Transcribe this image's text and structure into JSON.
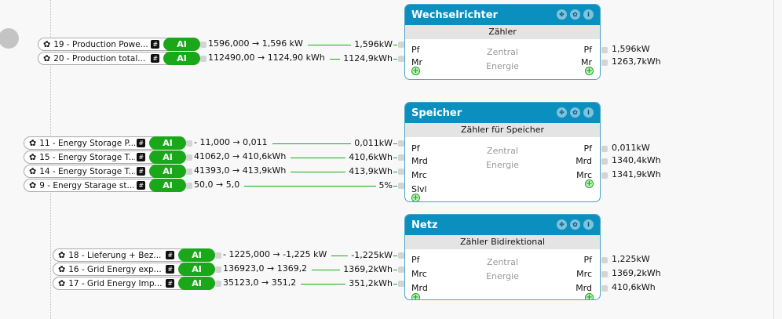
{
  "inputs": [
    {
      "id": "19",
      "label": "19 - Production Powe...",
      "raw": "1596,000 → 1,596  kW",
      "value": "1,596kW"
    },
    {
      "id": "20",
      "label": "20 - Production total...",
      "raw": "112490,00 → 1124,90  kWh",
      "value": "1124,9kWh"
    },
    {
      "id": "11",
      "label": "11 - Energy Storage P...",
      "raw": "- 11,000 → 0,011",
      "value": "0,011kW"
    },
    {
      "id": "15",
      "label": "15 - Energy Storage T...",
      "raw": "41062,0 → 410,6kWh",
      "value": "410,6kWh"
    },
    {
      "id": "14",
      "label": "14 - Energy Storage T...",
      "raw": "41393,0 → 413,9kWh",
      "value": "413,9kWh"
    },
    {
      "id": "9",
      "label": "9 - Energy Starage st...",
      "raw": "50,0 → 5,0",
      "value": "5%"
    },
    {
      "id": "18",
      "label": "18 - Lieferung + Bez...",
      "raw": "- 1225,000 → -1,225  kW",
      "value": "-1,225kW"
    },
    {
      "id": "16",
      "label": "16 - Grid Energy exp...",
      "raw": "136923,0 → 1369,2",
      "value": "1369,2kWh"
    },
    {
      "id": "17",
      "label": "17 - Grid Energy Imp...",
      "raw": "35123,0 → 351,2",
      "value": "351,2kWh"
    }
  ],
  "ai_label": "AI",
  "hash_label": "#",
  "nodes": [
    {
      "title": "Wechselrichter",
      "subtitle": "Zähler",
      "desc": [
        "Zentral",
        "Energie"
      ],
      "in_ports": [
        "Pf",
        "Mr"
      ],
      "out_ports": [
        "Pf",
        "Mr"
      ],
      "out_values": [
        "1,596kW",
        "1263,7kWh"
      ]
    },
    {
      "title": "Speicher",
      "subtitle": "Zähler für Speicher",
      "desc": [
        "Zentral",
        "Energie"
      ],
      "in_ports": [
        "Pf",
        "Mrd",
        "Mrc",
        "Slvl"
      ],
      "out_ports": [
        "Pf",
        "Mrd",
        "Mrc"
      ],
      "out_values": [
        "0,011kW",
        "1340,4kWh",
        "1341,9kWh"
      ]
    },
    {
      "title": "Netz",
      "subtitle": "Zähler Bidirektional",
      "desc": [
        "Zentral",
        "Energie"
      ],
      "in_ports": [
        "Pf",
        "Mrc",
        "Mrd"
      ],
      "out_ports": [
        "Pf",
        "Mrc",
        "Mrd"
      ],
      "out_values": [
        "1,225kW",
        "1369,2kWh",
        "410,6kWh"
      ]
    }
  ],
  "colors": {
    "header": "#0b8fbf",
    "ai_pill": "#1aa81a",
    "wire": "#1aa81a"
  },
  "icons": {
    "pill": "gear-icon",
    "node_buttons": [
      "move-icon",
      "gear-icon",
      "info-icon"
    ],
    "add": "plus-circle-icon"
  }
}
